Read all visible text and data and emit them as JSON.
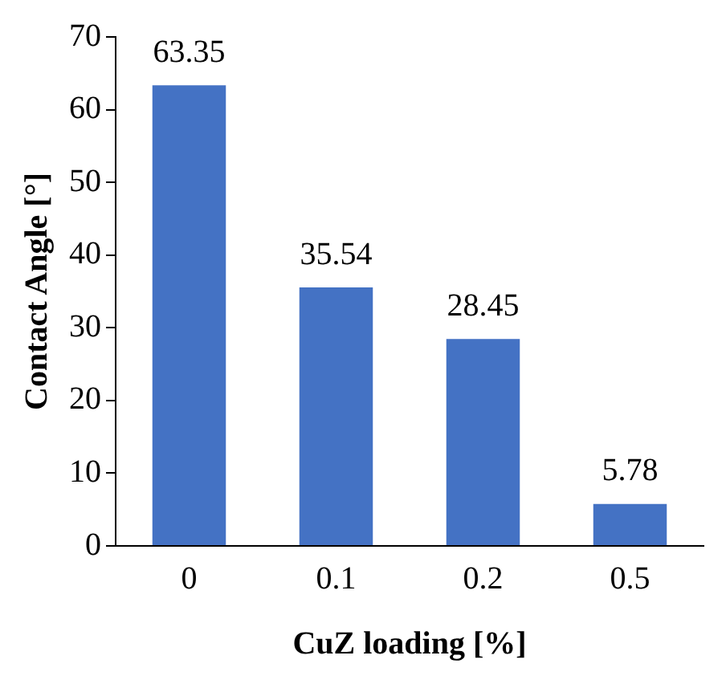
{
  "chart_data": {
    "type": "bar",
    "xlabel": "CuZ loading [%]",
    "ylabel": "Contact Angle [°]",
    "categories": [
      "0",
      "0.1",
      "0.2",
      "0.5"
    ],
    "values": [
      63.35,
      35.54,
      28.45,
      5.78
    ],
    "color": "#4472c4",
    "data_labels": true,
    "ylim": [
      0,
      70
    ],
    "yticks": [
      0,
      10,
      20,
      30,
      40,
      50,
      60,
      70
    ],
    "grid": false,
    "legend": false
  }
}
